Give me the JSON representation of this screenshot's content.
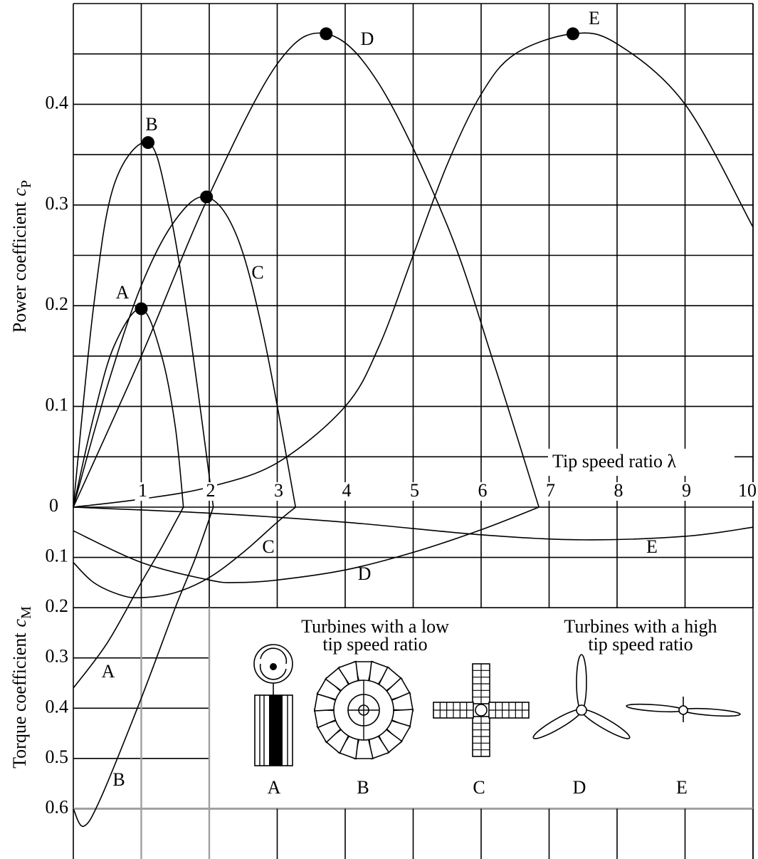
{
  "chart_data": [
    {
      "type": "line",
      "xlabel": "Tip speed ratio λ",
      "ylabel": "Power coefficient",
      "ylabel_symbol": "c",
      "ylabel_sub": "P",
      "xlim": [
        0,
        10
      ],
      "xticks": [
        1,
        2,
        3,
        4,
        5,
        6,
        7,
        8,
        9,
        10
      ],
      "ylim": [
        0,
        0.5
      ],
      "yticks": [
        0,
        0.1,
        0.2,
        0.3,
        0.4
      ],
      "minor_yticks": [
        0.05,
        0.15,
        0.25,
        0.35,
        0.45
      ],
      "color": "#000000",
      "series": [
        {
          "name": "A",
          "x": [
            0,
            0.3,
            0.6,
            1.0,
            1.3,
            1.5,
            1.62
          ],
          "values": [
            0,
            0.09,
            0.16,
            0.197,
            0.15,
            0.08,
            0
          ]
        },
        {
          "name": "B",
          "x": [
            0,
            0.3,
            0.6,
            1.1,
            1.4,
            1.7,
            2.06
          ],
          "values": [
            0,
            0.2,
            0.32,
            0.362,
            0.3,
            0.18,
            0
          ]
        },
        {
          "name": "C",
          "x": [
            0,
            0.5,
            1.0,
            1.5,
            1.96,
            2.4,
            2.8,
            3.27
          ],
          "values": [
            0,
            0.12,
            0.22,
            0.285,
            0.308,
            0.27,
            0.17,
            0
          ]
        },
        {
          "name": "D",
          "x": [
            0,
            1,
            2,
            3,
            3.72,
            4.5,
            5.5,
            6.2,
            6.85
          ],
          "values": [
            0,
            0.15,
            0.31,
            0.44,
            0.47,
            0.42,
            0.28,
            0.14,
            0
          ]
        },
        {
          "name": "E",
          "x": [
            0,
            1,
            2,
            3,
            4,
            4.5,
            5,
            5.5,
            6,
            6.5,
            7.35,
            8,
            9,
            10
          ],
          "values": [
            0,
            0.008,
            0.02,
            0.044,
            0.1,
            0.16,
            0.25,
            0.34,
            0.41,
            0.45,
            0.47,
            0.46,
            0.4,
            0.278
          ]
        }
      ]
    },
    {
      "type": "line",
      "ylabel": "Torque coefficient",
      "ylabel_symbol": "c",
      "ylabel_sub": "M",
      "xlim": [
        0,
        10
      ],
      "xgrid": [
        1,
        2,
        3,
        4,
        5,
        6,
        7,
        8,
        9,
        10
      ],
      "ylim": [
        0,
        0.7
      ],
      "yticks": [
        0.1,
        0.2,
        0.3,
        0.4,
        0.5,
        0.6
      ],
      "inverted": true,
      "color": "#000000",
      "series": [
        {
          "name": "A",
          "x": [
            0,
            0.5,
            1,
            1.3,
            1.62
          ],
          "values": [
            0.36,
            0.27,
            0.15,
            0.08,
            0
          ]
        },
        {
          "name": "B",
          "x": [
            0,
            0.15,
            0.4,
            1,
            1.5,
            1.8,
            2.06
          ],
          "values": [
            0.6,
            0.635,
            0.58,
            0.38,
            0.2,
            0.1,
            0
          ]
        },
        {
          "name": "C",
          "x": [
            0,
            0.3,
            0.7,
            1.0,
            1.5,
            2,
            2.5,
            3,
            3.27
          ],
          "values": [
            0.11,
            0.15,
            0.175,
            0.18,
            0.17,
            0.14,
            0.09,
            0.03,
            0
          ]
        },
        {
          "name": "D",
          "x": [
            0,
            1,
            2,
            2.4,
            3,
            4,
            5,
            6,
            6.85
          ],
          "values": [
            0.047,
            0.11,
            0.145,
            0.15,
            0.145,
            0.125,
            0.09,
            0.045,
            0
          ]
        },
        {
          "name": "E",
          "x": [
            0,
            2,
            4,
            6,
            7.5,
            9,
            10
          ],
          "values": [
            0,
            0.012,
            0.03,
            0.055,
            0.065,
            0.058,
            0.04
          ]
        }
      ],
      "inset": {
        "low_caption": [
          "Turbines with a low",
          "tip speed ratio"
        ],
        "high_caption": [
          "Turbines with a high",
          "tip speed ratio"
        ],
        "labels": [
          "A",
          "B",
          "C",
          "D",
          "E"
        ]
      }
    }
  ]
}
